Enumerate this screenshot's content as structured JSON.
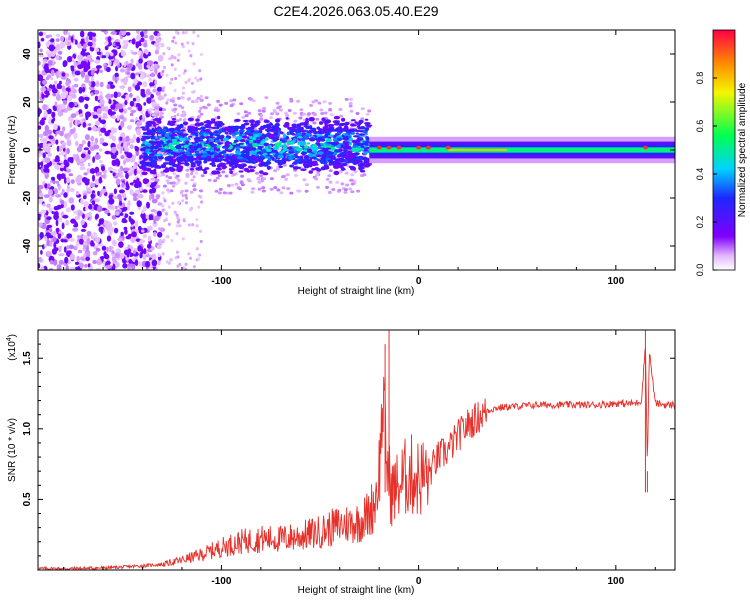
{
  "title": "C2E4.2026.063.05.40.E29",
  "colors": {
    "snr_line": "#e8302a",
    "axis": "#000000",
    "background": "#ffffff"
  },
  "chart_data": [
    {
      "type": "heatmap",
      "name": "spectrogram",
      "xlabel": "Height of straight line (km)",
      "ylabel": "Frequency (Hz)",
      "xlim": [
        -193,
        130
      ],
      "ylim": [
        -50,
        50
      ],
      "xticks": [
        -100,
        0,
        100
      ],
      "yticks": [
        -40,
        -20,
        0,
        20,
        40
      ],
      "colorbar": {
        "label": "Normalized spectral amplitude",
        "range": [
          0,
          1
        ],
        "ticks": [
          0.0,
          0.2,
          0.4,
          0.6,
          0.8
        ],
        "colormap": "rainbow (white-violet-blue-cyan-green-yellow-red)"
      },
      "features": {
        "noise_region_x": [
          -193,
          -130
        ],
        "scattered_decay_x": [
          -130,
          -110
        ],
        "broad_signal_x": [
          -140,
          -25
        ],
        "broad_signal_center_hz": 2,
        "broad_signal_halfwidth_hz": 10,
        "narrow_signal_x": [
          -25,
          130
        ],
        "narrow_signal_halfwidth_hz": 2,
        "peak_points_x": [
          -20,
          -15,
          -10,
          0,
          5,
          15,
          115
        ]
      }
    },
    {
      "type": "line",
      "name": "snr",
      "xlabel": "Height of straight line (km)",
      "ylabel": "SNR (10 * v/v)",
      "scale_label": "(x10",
      "scale_exponent": "4",
      "xlim": [
        -193,
        130
      ],
      "ylim": [
        0,
        1.7
      ],
      "xticks": [
        -100,
        0,
        100
      ],
      "yticks": [
        0.5,
        1.0,
        1.5
      ],
      "series": [
        {
          "name": "SNR",
          "x": [
            -193,
            -175,
            -160,
            -150,
            -140,
            -130,
            -120,
            -110,
            -100,
            -90,
            -80,
            -70,
            -60,
            -50,
            -40,
            -30,
            -25,
            -22,
            -20,
            -18,
            -16,
            -14,
            -10,
            -5,
            0,
            5,
            10,
            15,
            20,
            25,
            30,
            35,
            40,
            50,
            60,
            70,
            80,
            90,
            100,
            110,
            113,
            115,
            116,
            117,
            120,
            125,
            130
          ],
          "values": [
            0.01,
            0.01,
            0.015,
            0.02,
            0.03,
            0.04,
            0.07,
            0.11,
            0.16,
            0.2,
            0.22,
            0.22,
            0.24,
            0.27,
            0.32,
            0.34,
            0.4,
            0.5,
            0.7,
            1.2,
            0.75,
            0.55,
            0.6,
            0.68,
            0.65,
            0.68,
            0.8,
            0.85,
            0.95,
            1.03,
            1.08,
            1.13,
            1.15,
            1.16,
            1.17,
            1.17,
            1.17,
            1.17,
            1.18,
            1.18,
            1.2,
            1.6,
            0.75,
            1.55,
            1.18,
            1.17,
            1.17
          ]
        }
      ],
      "spikes": [
        {
          "x": -15,
          "value": 1.7
        },
        {
          "x": -17,
          "value": 1.6
        },
        {
          "x": 115,
          "value": 1.7
        },
        {
          "x": 116,
          "value": 0.7
        }
      ]
    }
  ]
}
